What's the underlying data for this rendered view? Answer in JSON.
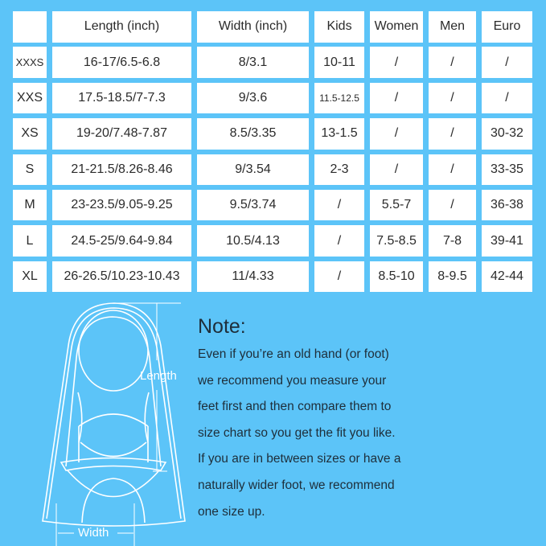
{
  "table": {
    "headers": [
      "",
      "Length (inch)",
      "Width (inch)",
      "Kids",
      "Women",
      "Men",
      "Euro"
    ],
    "rows": [
      [
        "XXXS",
        "16-17/6.5-6.8",
        "8/3.1",
        "10-11",
        "/",
        "/",
        "/"
      ],
      [
        "XXS",
        "17.5-18.5/7-7.3",
        "9/3.6",
        "11.5-12.5",
        "/",
        "/",
        "/"
      ],
      [
        "XS",
        "19-20/7.48-7.87",
        "8.5/3.35",
        "13-1.5",
        "/",
        "/",
        "30-32"
      ],
      [
        "S",
        "21-21.5/8.26-8.46",
        "9/3.54",
        "2-3",
        "/",
        "/",
        "33-35"
      ],
      [
        "M",
        "23-23.5/9.05-9.25",
        "9.5/3.74",
        "/",
        "5.5-7",
        "/",
        "36-38"
      ],
      [
        "L",
        "24.5-25/9.64-9.84",
        "10.5/4.13",
        "/",
        "7.5-8.5",
        "7-8",
        "39-41"
      ],
      [
        "XL",
        "26-26.5/10.23-10.43",
        "11/4.33",
        "/",
        "8.5-10",
        "8-9.5",
        "42-44"
      ]
    ]
  },
  "diagram": {
    "length_label": "Length",
    "width_label": "Width",
    "icon": "swim-fin-outline"
  },
  "note": {
    "title": "Note:",
    "lines": [
      "Even if you’re an old hand (or foot)",
      "we recommend you measure your",
      "feet first and then compare them to",
      "size chart so you get the fit you like.",
      "If you are in between sizes or have a",
      "naturally wider foot, we recommend",
      "one size up."
    ]
  },
  "colors": {
    "background": "#5cc4f8",
    "cell": "#ffffff",
    "text": "#2b2b2b"
  }
}
